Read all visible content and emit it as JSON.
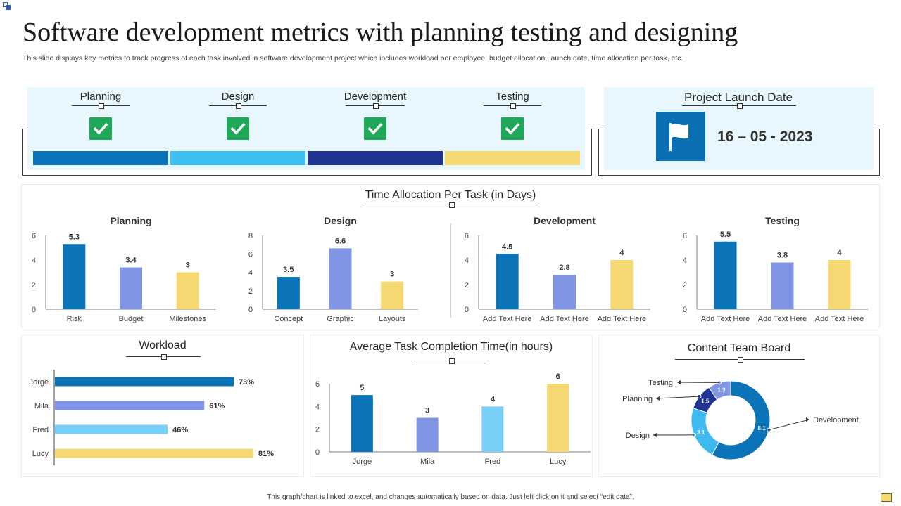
{
  "page": {
    "title": "Software development metrics with planning testing and designing",
    "subtitle": "This slide displays key metrics to track progress of each task involved in software development project which includes workload per employee, budget allocation, launch date, time allocation per task, etc.",
    "footer": "This graph/chart is linked to excel, and changes automatically based on data. Just left click on it and select “edit data”."
  },
  "stages": [
    {
      "label": "Planning",
      "color": "#0b73b7"
    },
    {
      "label": "Design",
      "color": "#3dc0f0"
    },
    {
      "label": "Development",
      "color": "#1f3492"
    },
    {
      "label": "Testing",
      "color": "#f6d872"
    }
  ],
  "launch": {
    "label": "Project Launch Date",
    "date": "16 – 05 - 2023"
  },
  "time_allocation": {
    "title": "Time Allocation Per Task (in Days)"
  },
  "workload_title": "Workload",
  "completion_title": "Average Task Completion Time(in hours)",
  "content_board_title": "Content Team Board",
  "colors": {
    "blue": "#0b73b7",
    "periwinkle": "#8096e5",
    "yellow": "#f6d872",
    "light_blue": "#78cff7",
    "navy": "#1f3492",
    "sky": "#3dbaf0"
  },
  "chart_data": [
    {
      "type": "bar",
      "title": "Planning",
      "categories": [
        "Risk",
        "Budget",
        "Milestones"
      ],
      "values": [
        5.3,
        3.4,
        3
      ],
      "labels": [
        "5.3",
        "3.4",
        "3"
      ],
      "ylim": [
        0,
        6
      ],
      "yticks": [
        0,
        2,
        4,
        6
      ],
      "colors": [
        "#0b73b7",
        "#8096e5",
        "#f6d872"
      ]
    },
    {
      "type": "bar",
      "title": "Design",
      "categories": [
        "Concept",
        "Graphic",
        "Layouts"
      ],
      "values": [
        3.5,
        6.6,
        3
      ],
      "labels": [
        "3.5",
        "6.6",
        "3"
      ],
      "ylim": [
        0,
        8
      ],
      "yticks": [
        0,
        2,
        4,
        6,
        8
      ],
      "colors": [
        "#0b73b7",
        "#8096e5",
        "#f6d872"
      ]
    },
    {
      "type": "bar",
      "title": "Development",
      "categories": [
        "Add Text Here",
        "Add Text Here",
        "Add Text Here"
      ],
      "values": [
        4.5,
        2.8,
        4
      ],
      "labels": [
        "4.5",
        "2.8",
        "4"
      ],
      "ylim": [
        0,
        6
      ],
      "yticks": [
        0,
        2,
        4,
        6
      ],
      "colors": [
        "#0b73b7",
        "#8096e5",
        "#f6d872"
      ]
    },
    {
      "type": "bar",
      "title": "Testing",
      "categories": [
        "Add Text Here",
        "Add Text Here",
        "Add Text Here"
      ],
      "values": [
        5.5,
        3.8,
        4
      ],
      "labels": [
        "5.5",
        "3.8",
        "4"
      ],
      "ylim": [
        0,
        6
      ],
      "yticks": [
        0,
        2,
        4,
        6
      ],
      "colors": [
        "#0b73b7",
        "#8096e5",
        "#f6d872"
      ]
    },
    {
      "type": "bar",
      "orientation": "horizontal",
      "title": "Workload",
      "categories": [
        "Jorge",
        "Mila",
        "Fred",
        "Lucy"
      ],
      "values": [
        73,
        61,
        46,
        81
      ],
      "labels": [
        "73%",
        "61%",
        "46%",
        "81%"
      ],
      "xlim": [
        0,
        100
      ],
      "colors": [
        "#0b73b7",
        "#8096e5",
        "#78cff7",
        "#f6d872"
      ]
    },
    {
      "type": "bar",
      "title": "Average Task Completion Time(in hours)",
      "categories": [
        "Jorge",
        "Mila",
        "Fred",
        "Lucy"
      ],
      "values": [
        5,
        3,
        4,
        6
      ],
      "labels": [
        "5",
        "3",
        "4",
        "6"
      ],
      "ylim": [
        0,
        6
      ],
      "yticks": [
        0,
        2,
        4,
        6
      ],
      "colors": [
        "#0b73b7",
        "#8096e5",
        "#78cff7",
        "#f6d872"
      ]
    },
    {
      "type": "pie",
      "style": "donut",
      "title": "Content Team Board",
      "categories": [
        "Development",
        "Design",
        "Planning",
        "Testing"
      ],
      "values": [
        8.1,
        3.1,
        1.5,
        1.3
      ],
      "labels": [
        "8.1",
        "3.1",
        "1.5",
        "1.3"
      ],
      "colors": [
        "#0b73b7",
        "#3dbaf0",
        "#1f3492",
        "#8096e5"
      ]
    }
  ]
}
